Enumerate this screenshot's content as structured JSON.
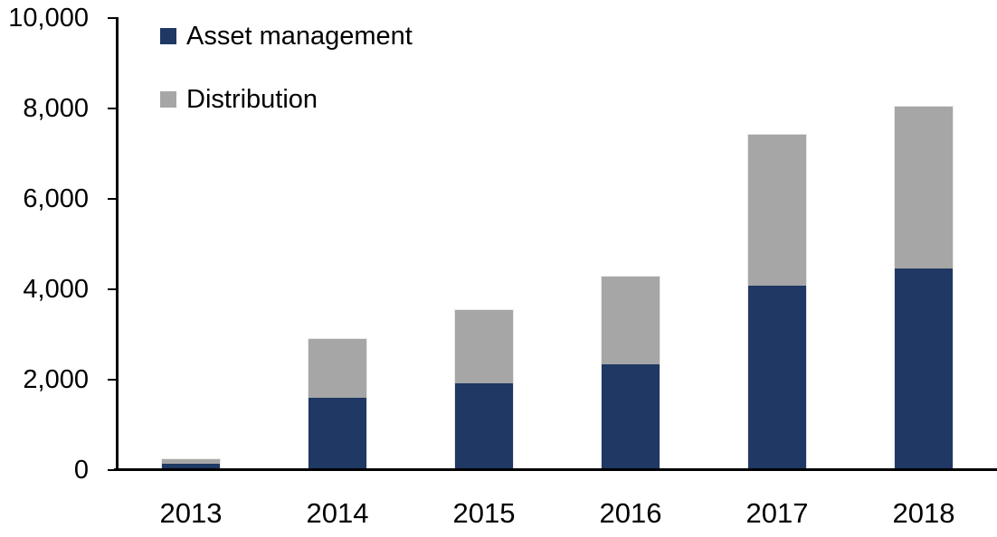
{
  "chart_data": {
    "type": "bar",
    "stacked": true,
    "title": "",
    "xlabel": "",
    "ylabel": "",
    "categories": [
      "2013",
      "2014",
      "2015",
      "2016",
      "2017",
      "2018"
    ],
    "series": [
      {
        "name": "Asset management",
        "color": "#1F3864",
        "values": [
          110,
          1560,
          1890,
          2310,
          4040,
          4420
        ]
      },
      {
        "name": "Distribution",
        "color": "#A6A6A6",
        "values": [
          90,
          1300,
          1610,
          1930,
          3350,
          3580
        ]
      }
    ],
    "totals": [
      200,
      2860,
      3500,
      4240,
      7390,
      8000
    ],
    "ylim": [
      0,
      10000
    ],
    "ytick_interval": 2000,
    "ytick_labels": [
      "0",
      "2,000",
      "4,000",
      "6,000",
      "8,000",
      "10,000"
    ],
    "grid": false,
    "legend_position": "top-left-inside"
  },
  "colors": {
    "axis": "#000000",
    "text": "#000000",
    "background": "#FFFFFF"
  }
}
